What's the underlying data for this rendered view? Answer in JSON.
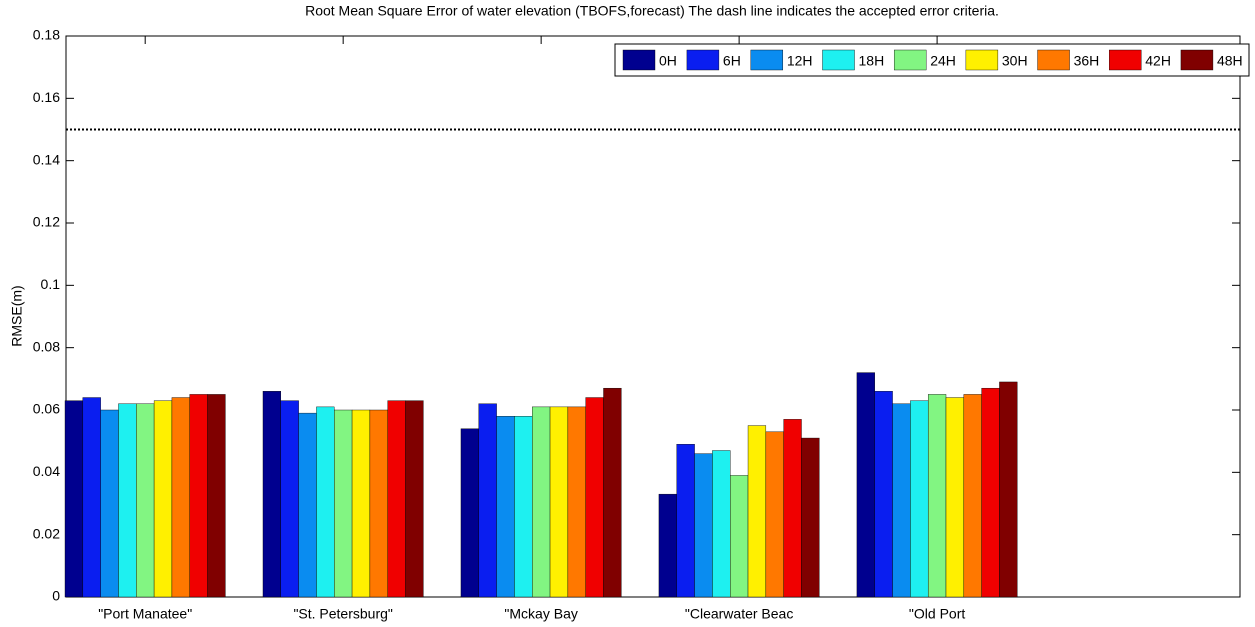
{
  "chart_data": {
    "type": "bar",
    "title": "Root Mean Square Error of water elevation  (TBOFS,forecast)   The dash line indicates the accepted error criteria.",
    "y_label": "RMSE(m)",
    "categories": [
      "\"Port Manatee\"",
      "\"St. Petersburg\"",
      "\"Mckay Bay",
      "\"Clearwater Beac",
      "\"Old Port"
    ],
    "series": [
      {
        "name": "0H",
        "color": "#00008f",
        "values": [
          0.063,
          0.066,
          0.054,
          0.033,
          0.072
        ]
      },
      {
        "name": "6H",
        "color": "#0a1ef0",
        "values": [
          0.064,
          0.063,
          0.062,
          0.049,
          0.066
        ]
      },
      {
        "name": "12H",
        "color": "#0a8cf0",
        "values": [
          0.06,
          0.059,
          0.058,
          0.046,
          0.062
        ]
      },
      {
        "name": "18H",
        "color": "#1ef0f0",
        "values": [
          0.062,
          0.061,
          0.058,
          0.047,
          0.063
        ]
      },
      {
        "name": "24H",
        "color": "#82f582",
        "values": [
          0.062,
          0.06,
          0.061,
          0.039,
          0.065
        ]
      },
      {
        "name": "30H",
        "color": "#fff000",
        "values": [
          0.063,
          0.06,
          0.061,
          0.055,
          0.064
        ]
      },
      {
        "name": "36H",
        "color": "#ff7800",
        "values": [
          0.064,
          0.06,
          0.061,
          0.053,
          0.065
        ]
      },
      {
        "name": "42H",
        "color": "#f00000",
        "values": [
          0.065,
          0.063,
          0.064,
          0.057,
          0.067
        ]
      },
      {
        "name": "48H",
        "color": "#800000",
        "values": [
          0.065,
          0.063,
          0.067,
          0.051,
          0.069
        ]
      }
    ],
    "reference_line": 0.15,
    "xlim": [
      0.6,
      6.53
    ],
    "ylim": [
      0,
      0.18
    ],
    "yticks": [
      0,
      0.02,
      0.04,
      0.06,
      0.08,
      0.1,
      0.12,
      0.14,
      0.16,
      0.18
    ],
    "legend": "top-right"
  }
}
